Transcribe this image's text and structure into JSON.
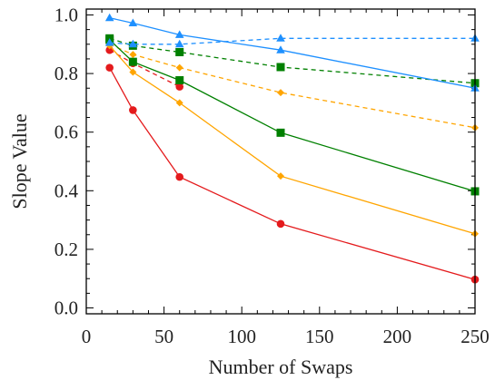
{
  "chart_data": {
    "type": "line",
    "title": "",
    "xlabel": "Number of Swaps",
    "ylabel": "Slope Value",
    "xlim": [
      0,
      250
    ],
    "ylim": [
      -0.02,
      1.02
    ],
    "x_ticks": [
      "0",
      "50",
      "100",
      "150",
      "200",
      "250"
    ],
    "y_ticks": [
      "0.0",
      "0.2",
      "0.4",
      "0.6",
      "0.8",
      "1.0"
    ],
    "grid": false,
    "legend": "none",
    "series": [
      {
        "color": "#e41a1c",
        "style": "solid",
        "marker": "circle",
        "x": [
          15,
          30,
          60,
          125,
          250
        ],
        "y": [
          0.82,
          0.675,
          0.447,
          0.287,
          0.097
        ]
      },
      {
        "color": "#e41a1c",
        "style": "dashed",
        "marker": "circle",
        "x": [
          15,
          30,
          60
        ],
        "y": [
          0.88,
          0.835,
          0.755
        ]
      },
      {
        "color": "#ffa500",
        "style": "solid",
        "marker": "diamond",
        "x": [
          15,
          30,
          60,
          125,
          250
        ],
        "y": [
          0.895,
          0.805,
          0.7,
          0.45,
          0.253
        ]
      },
      {
        "color": "#ffa500",
        "style": "dashed",
        "marker": "diamond",
        "x": [
          15,
          30,
          60,
          125,
          250
        ],
        "y": [
          0.9,
          0.865,
          0.82,
          0.735,
          0.615
        ]
      },
      {
        "color": "#008000",
        "style": "solid",
        "marker": "square",
        "x": [
          15,
          30,
          60,
          125,
          250
        ],
        "y": [
          0.915,
          0.84,
          0.777,
          0.598,
          0.398
        ]
      },
      {
        "color": "#008000",
        "style": "dashed",
        "marker": "square",
        "x": [
          15,
          30,
          60,
          125,
          250
        ],
        "y": [
          0.92,
          0.895,
          0.873,
          0.822,
          0.767
        ]
      },
      {
        "color": "#1e90ff",
        "style": "solid",
        "marker": "triangle",
        "x": [
          15,
          30,
          60,
          125,
          250
        ],
        "y": [
          0.99,
          0.972,
          0.932,
          0.88,
          0.75
        ]
      },
      {
        "color": "#1e90ff",
        "style": "dashed",
        "marker": "triangle",
        "x": [
          15,
          30,
          60,
          125,
          250
        ],
        "y": [
          0.905,
          0.9,
          0.9,
          0.92,
          0.92
        ]
      }
    ]
  }
}
